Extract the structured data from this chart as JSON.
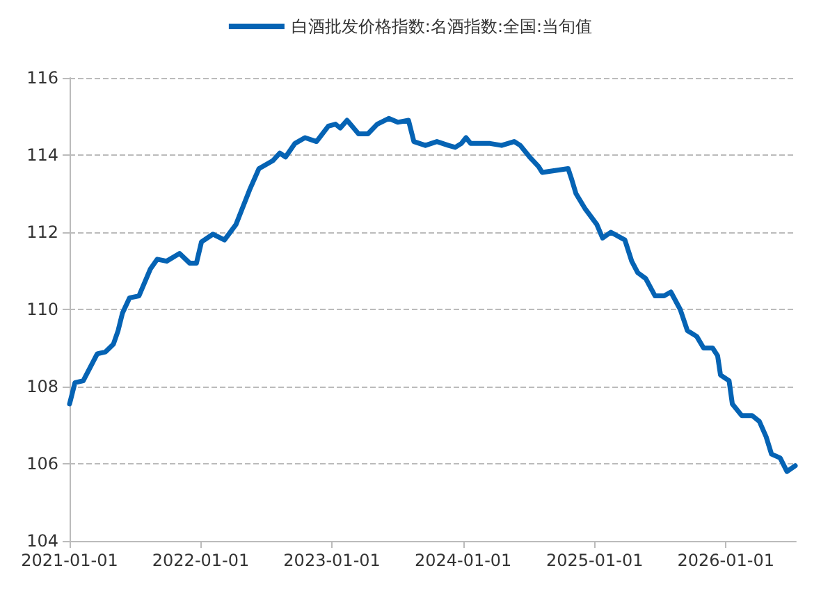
{
  "chart_data": {
    "type": "line",
    "legend": "top",
    "grid": "y",
    "marker": "none",
    "line_style": "solid",
    "xlim": [
      "2021-01-01",
      "2026-07-15"
    ],
    "xticks": [
      "2021-01-01",
      "2022-01-01",
      "2023-01-01",
      "2024-01-01",
      "2025-01-01",
      "2026-01-01"
    ],
    "ylim": [
      104,
      116
    ],
    "yticks": [
      104,
      106,
      108,
      110,
      112,
      114,
      116
    ],
    "series": [
      {
        "name": "白酒批发价格指数:名酒指数:全国:当旬值",
        "color": "#0563b4",
        "x": [
          "2021-01-01",
          "2021-01-16",
          "2021-02-08",
          "2021-03-19",
          "2021-04-11",
          "2021-05-03",
          "2021-05-16",
          "2021-05-28",
          "2021-06-17",
          "2021-07-13",
          "2021-08-14",
          "2021-09-02",
          "2021-09-28",
          "2021-11-03",
          "2021-12-01",
          "2021-12-20",
          "2022-01-03",
          "2022-02-04",
          "2022-03-08",
          "2022-04-09",
          "2022-05-17",
          "2022-06-12",
          "2022-07-20",
          "2022-08-09",
          "2022-08-25",
          "2022-09-20",
          "2022-10-18",
          "2022-11-19",
          "2022-12-22",
          "2023-01-11",
          "2023-01-24",
          "2023-02-12",
          "2023-03-16",
          "2023-04-11",
          "2023-05-07",
          "2023-06-08",
          "2023-07-03",
          "2023-08-02",
          "2023-08-17",
          "2023-09-18",
          "2023-10-20",
          "2023-11-21",
          "2023-12-10",
          "2023-12-27",
          "2024-01-09",
          "2024-01-22",
          "2024-03-16",
          "2024-04-17",
          "2024-05-22",
          "2024-06-08",
          "2024-07-04",
          "2024-07-29",
          "2024-08-08",
          "2024-09-13",
          "2024-10-19",
          "2024-10-28",
          "2024-11-10",
          "2024-12-06",
          "2025-01-07",
          "2025-01-23",
          "2025-02-15",
          "2025-03-26",
          "2025-04-14",
          "2025-05-01",
          "2025-05-23",
          "2025-06-18",
          "2025-07-13",
          "2025-08-01",
          "2025-08-27",
          "2025-09-16",
          "2025-10-12",
          "2025-10-31",
          "2025-11-25",
          "2025-12-09",
          "2025-12-17",
          "2026-01-10",
          "2026-01-19",
          "2026-02-14",
          "2026-03-15",
          "2026-04-04",
          "2026-04-23",
          "2026-05-08",
          "2026-06-01",
          "2026-06-20",
          "2026-07-13"
        ],
        "values": [
          107.55,
          108.1,
          108.15,
          108.85,
          108.9,
          109.1,
          109.45,
          109.9,
          110.3,
          110.35,
          111.05,
          111.3,
          111.25,
          111.45,
          111.2,
          111.2,
          111.75,
          111.95,
          111.8,
          112.2,
          113.1,
          113.65,
          113.85,
          114.05,
          113.95,
          114.3,
          114.45,
          114.35,
          114.75,
          114.8,
          114.7,
          114.9,
          114.55,
          114.55,
          114.8,
          114.95,
          114.85,
          114.9,
          114.35,
          114.25,
          114.35,
          114.25,
          114.2,
          114.3,
          114.45,
          114.3,
          114.3,
          114.25,
          114.35,
          114.25,
          113.95,
          113.7,
          113.55,
          113.6,
          113.65,
          113.4,
          113.0,
          112.6,
          112.2,
          111.85,
          112.0,
          111.8,
          111.25,
          110.95,
          110.8,
          110.35,
          110.35,
          110.45,
          110.0,
          109.45,
          109.3,
          109.0,
          109.0,
          108.8,
          108.3,
          108.15,
          107.55,
          107.25,
          107.25,
          107.1,
          106.7,
          106.25,
          106.15,
          105.8,
          105.95
        ]
      }
    ]
  }
}
